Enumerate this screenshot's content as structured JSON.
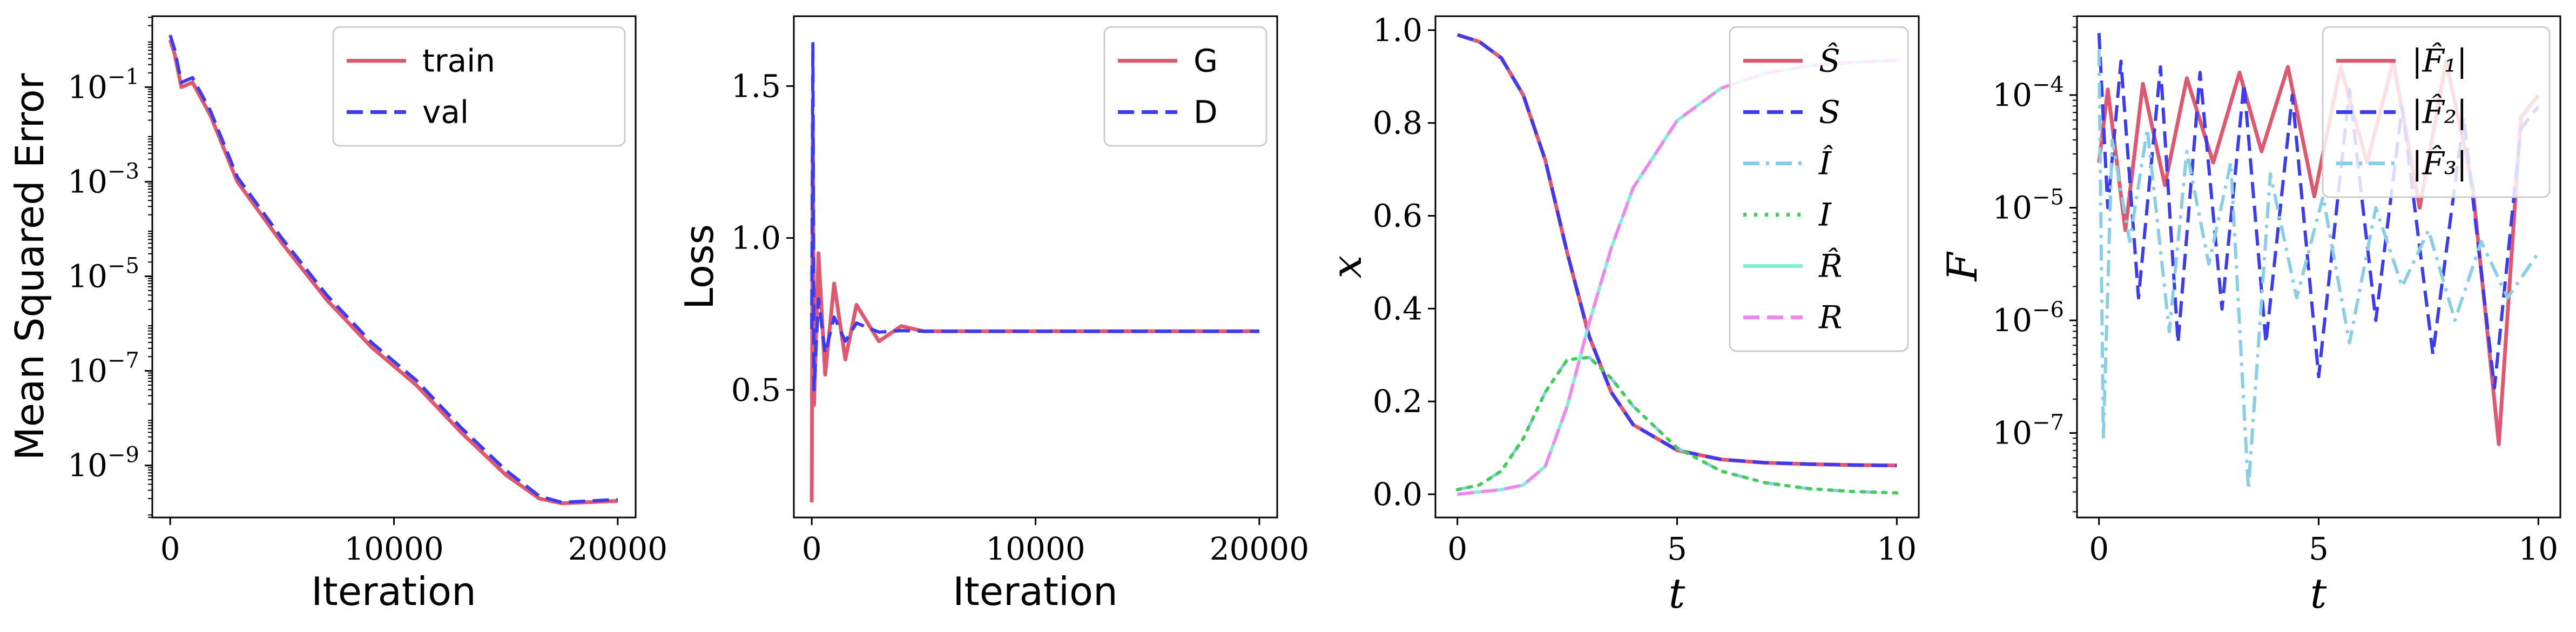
{
  "chart_data": [
    {
      "type": "line",
      "xlabel": "Iteration",
      "ylabel": "Mean Squared Error",
      "xlim": [
        -800,
        20800
      ],
      "ylim_log10": [
        -10.1,
        0.5
      ],
      "yscale": "log",
      "xticks": [
        0,
        10000,
        20000
      ],
      "xtick_labels": [
        "0",
        "10000",
        "20000"
      ],
      "yticks_log10": [
        -1,
        -3,
        -5,
        -7,
        -9
      ],
      "ytick_labels": [
        "10",
        "10",
        "10",
        "10",
        "10"
      ],
      "ytick_exponents": [
        "−1",
        "−3",
        "−5",
        "−7",
        "−9"
      ],
      "legend_position": "top-right",
      "series": [
        {
          "name": "train",
          "color": "#e05870",
          "style": "solid",
          "x": [
            0,
            200,
            500,
            1000,
            1800,
            3000,
            5000,
            7000,
            9000,
            11000,
            13000,
            15000,
            16500,
            17500,
            20000
          ],
          "y_log10": [
            0.0,
            -0.3,
            -1.0,
            -0.9,
            -1.6,
            -3.0,
            -4.3,
            -5.5,
            -6.5,
            -7.3,
            -8.3,
            -9.2,
            -9.7,
            -9.8,
            -9.75
          ]
        },
        {
          "name": "val",
          "color": "#3b3bf0",
          "style": "dashed",
          "x": [
            0,
            200,
            500,
            1000,
            1800,
            3000,
            5000,
            7000,
            9000,
            11000,
            13000,
            15000,
            16500,
            17500,
            20000
          ],
          "y_log10": [
            0.1,
            -0.2,
            -0.9,
            -0.8,
            -1.5,
            -2.9,
            -4.2,
            -5.4,
            -6.4,
            -7.2,
            -8.2,
            -9.1,
            -9.65,
            -9.78,
            -9.72
          ]
        }
      ]
    },
    {
      "type": "line",
      "xlabel": "Iteration",
      "ylabel": "Loss",
      "xlim": [
        -800,
        20800
      ],
      "ylim": [
        0.08,
        1.73
      ],
      "xticks": [
        0,
        10000,
        20000
      ],
      "xtick_labels": [
        "0",
        "10000",
        "20000"
      ],
      "yticks": [
        0.5,
        1.0,
        1.5
      ],
      "ytick_labels": [
        "0.5",
        "1.0",
        "1.5"
      ],
      "legend_position": "top-right",
      "series": [
        {
          "name": "G",
          "color": "#e05870",
          "style": "solid",
          "x": [
            0,
            50,
            100,
            300,
            600,
            1000,
            1500,
            2000,
            3000,
            4000,
            5000,
            10000,
            20000
          ],
          "y": [
            0.13,
            1.4,
            0.45,
            0.95,
            0.55,
            0.85,
            0.6,
            0.78,
            0.66,
            0.71,
            0.693,
            0.693,
            0.693
          ]
        },
        {
          "name": "D",
          "color": "#3b3bf0",
          "style": "dashed",
          "x": [
            0,
            50,
            100,
            300,
            600,
            1000,
            1500,
            2000,
            3000,
            4000,
            5000,
            10000,
            20000
          ],
          "y": [
            0.7,
            1.64,
            0.5,
            0.8,
            0.62,
            0.74,
            0.66,
            0.72,
            0.69,
            0.695,
            0.693,
            0.693,
            0.693
          ]
        }
      ]
    },
    {
      "type": "line",
      "xlabel": "t",
      "ylabel": "x",
      "xlim": [
        -0.5,
        10.5
      ],
      "ylim": [
        -0.05,
        1.03
      ],
      "xticks": [
        0,
        5,
        10
      ],
      "xtick_labels": [
        "0",
        "5",
        "10"
      ],
      "yticks": [
        0.0,
        0.2,
        0.4,
        0.6,
        0.8,
        1.0
      ],
      "ytick_labels": [
        "0.0",
        "0.2",
        "0.4",
        "0.6",
        "0.8",
        "1.0"
      ],
      "legend_position": "top-right",
      "series": [
        {
          "name": "Ŝ",
          "color": "#e05870",
          "style": "solid",
          "x": [
            0,
            0.5,
            1,
            1.5,
            2,
            2.5,
            3,
            3.5,
            4,
            5,
            6,
            7,
            8,
            9,
            10
          ],
          "y": [
            0.99,
            0.975,
            0.94,
            0.86,
            0.72,
            0.52,
            0.34,
            0.22,
            0.15,
            0.095,
            0.075,
            0.068,
            0.065,
            0.063,
            0.062
          ]
        },
        {
          "name": "S",
          "color": "#3b3bf0",
          "style": "dashed",
          "x": [
            0,
            0.5,
            1,
            1.5,
            2,
            2.5,
            3,
            3.5,
            4,
            5,
            6,
            7,
            8,
            9,
            10
          ],
          "y": [
            0.99,
            0.975,
            0.94,
            0.86,
            0.72,
            0.52,
            0.34,
            0.22,
            0.15,
            0.095,
            0.075,
            0.068,
            0.065,
            0.063,
            0.062
          ]
        },
        {
          "name": "Î",
          "color": "#87cee6",
          "style": "dashdot",
          "x": [
            0,
            0.5,
            1,
            1.5,
            2,
            2.5,
            3,
            3.5,
            4,
            5,
            6,
            7,
            8,
            9,
            10
          ],
          "y": [
            0.01,
            0.02,
            0.05,
            0.12,
            0.22,
            0.29,
            0.295,
            0.25,
            0.19,
            0.1,
            0.05,
            0.025,
            0.012,
            0.006,
            0.003
          ]
        },
        {
          "name": "I",
          "color": "#44cc55",
          "style": "dotted",
          "x": [
            0,
            0.5,
            1,
            1.5,
            2,
            2.5,
            3,
            3.5,
            4,
            5,
            6,
            7,
            8,
            9,
            10
          ],
          "y": [
            0.01,
            0.02,
            0.05,
            0.12,
            0.22,
            0.29,
            0.295,
            0.25,
            0.19,
            0.1,
            0.05,
            0.025,
            0.012,
            0.006,
            0.003
          ]
        },
        {
          "name": "R̂",
          "color": "#7ff0d4",
          "style": "solid",
          "x": [
            0,
            0.5,
            1,
            1.5,
            2,
            2.5,
            3,
            3.5,
            4,
            5,
            6,
            7,
            8,
            9,
            10
          ],
          "y": [
            0.0,
            0.005,
            0.01,
            0.02,
            0.06,
            0.19,
            0.37,
            0.53,
            0.66,
            0.805,
            0.875,
            0.907,
            0.923,
            0.931,
            0.935
          ]
        },
        {
          "name": "R",
          "color": "#ee88ee",
          "style": "dashed",
          "x": [
            0,
            0.5,
            1,
            1.5,
            2,
            2.5,
            3,
            3.5,
            4,
            5,
            6,
            7,
            8,
            9,
            10
          ],
          "y": [
            0.0,
            0.005,
            0.01,
            0.02,
            0.06,
            0.19,
            0.37,
            0.53,
            0.66,
            0.805,
            0.875,
            0.907,
            0.923,
            0.931,
            0.935
          ]
        }
      ]
    },
    {
      "type": "line",
      "xlabel": "t",
      "ylabel": "F",
      "xlim": [
        -0.5,
        10.5
      ],
      "ylim_log10": [
        -7.75,
        -3.3
      ],
      "yscale": "log",
      "xticks": [
        0,
        5,
        10
      ],
      "xtick_labels": [
        "0",
        "5",
        "10"
      ],
      "yticks_log10": [
        -4,
        -5,
        -6,
        -7
      ],
      "ytick_labels": [
        "10",
        "10",
        "10",
        "10"
      ],
      "ytick_exponents": [
        "−4",
        "−5",
        "−6",
        "−7"
      ],
      "legend_position": "top-right",
      "series": [
        {
          "name": "|F̂₁|",
          "color": "#e05870",
          "style": "solid",
          "x": [
            0,
            0.2,
            0.6,
            1.0,
            1.5,
            2.0,
            2.6,
            3.2,
            3.7,
            4.3,
            4.9,
            5.5,
            6.1,
            6.7,
            7.3,
            7.9,
            8.5,
            9.1,
            9.6,
            10.0
          ],
          "y_log10": [
            -4.6,
            -3.95,
            -5.2,
            -3.9,
            -4.8,
            -3.85,
            -4.6,
            -3.8,
            -4.5,
            -3.75,
            -4.9,
            -3.75,
            -4.6,
            -3.7,
            -5.0,
            -3.7,
            -4.8,
            -7.1,
            -4.2,
            -4.0
          ]
        },
        {
          "name": "|F̂₂|",
          "color": "#3b3bf0",
          "style": "dashed",
          "x": [
            0,
            0.2,
            0.5,
            0.9,
            1.4,
            1.8,
            2.3,
            2.8,
            3.3,
            3.8,
            4.4,
            5.0,
            5.7,
            6.3,
            6.9,
            7.6,
            8.3,
            9.0,
            9.6,
            10.0
          ],
          "y_log10": [
            -3.45,
            -5.0,
            -3.7,
            -5.8,
            -3.75,
            -6.2,
            -3.8,
            -5.9,
            -3.9,
            -6.2,
            -4.0,
            -6.5,
            -3.95,
            -6.0,
            -4.1,
            -6.3,
            -4.2,
            -6.6,
            -4.3,
            -4.1
          ]
        },
        {
          "name": "|F̂₃|",
          "color": "#87cee6",
          "style": "dashdot",
          "x": [
            0,
            0.1,
            0.3,
            0.7,
            1.1,
            1.6,
            2.0,
            2.5,
            3.0,
            3.4,
            3.9,
            4.5,
            5.1,
            5.7,
            6.3,
            6.9,
            7.5,
            8.1,
            8.7,
            9.3,
            10.0
          ],
          "y_log10": [
            -3.6,
            -7.05,
            -4.4,
            -5.3,
            -4.3,
            -6.1,
            -4.5,
            -5.5,
            -4.6,
            -7.5,
            -4.7,
            -5.8,
            -4.9,
            -6.2,
            -5.0,
            -5.7,
            -5.2,
            -6.0,
            -5.3,
            -5.8,
            -5.4
          ]
        }
      ]
    }
  ]
}
